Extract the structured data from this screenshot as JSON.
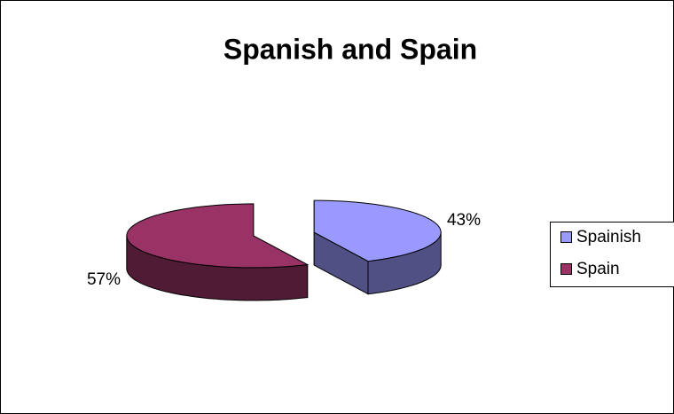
{
  "chart_data": {
    "type": "pie3d",
    "title": "Spanish and Spain",
    "categories": [
      "Spainish",
      "Spain"
    ],
    "values": [
      43,
      57
    ],
    "value_labels": [
      "43%",
      "57%"
    ],
    "colors": [
      "#9999ff",
      "#993366"
    ],
    "legend": "right"
  }
}
